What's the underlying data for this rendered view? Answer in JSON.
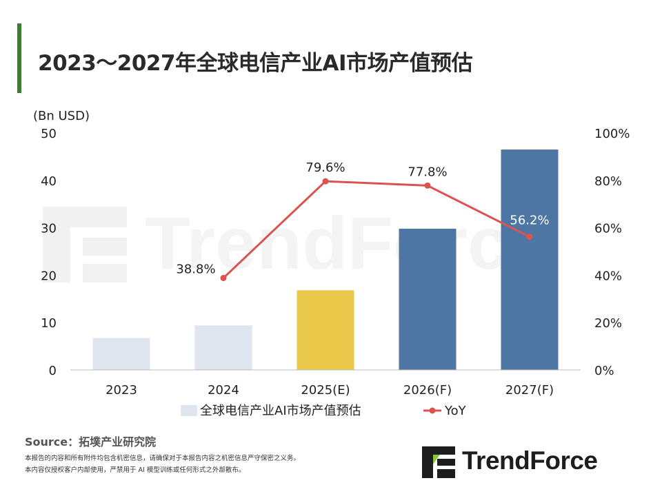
{
  "title": "2023～2027年全球电信产业AI市场产值预估",
  "source": "Source：拓墣产业研究院",
  "disclaimer": [
    "本报告的内容和所有附件均包含机密信息，请确保对于本报告内容之机密信息严守保密之义务。",
    "本内容仅授权客户内部使用，严禁用于 AI 模型训练或任何形式之外部散布。"
  ],
  "logo": {
    "text": "TrendForce",
    "icon": "trendforce-logo-icon"
  },
  "watermark": "TrendForce",
  "colors": {
    "bar_actual": "#dfe6f0",
    "bar_estimate": "#eac84a",
    "bar_forecast": "#4e76a4",
    "line": "#d9534f",
    "title_accent": "#3a7d2c"
  },
  "chart_data": {
    "type": "bar",
    "ylabel": "(Bn USD)",
    "categories": [
      "2023",
      "2024",
      "2025(E)",
      "2026(F)",
      "2027(F)"
    ],
    "ylim": [
      0,
      50
    ],
    "yticks": [
      "0",
      "10",
      "20",
      "30",
      "40",
      "50"
    ],
    "y2lim": [
      0,
      100
    ],
    "y2ticks": [
      "0%",
      "20%",
      "40%",
      "60%",
      "80%",
      "100%"
    ],
    "series": [
      {
        "name": "全球电信产业AI市场产值预估",
        "type": "bar",
        "axis": "left",
        "values": [
          6.7,
          9.4,
          16.8,
          29.8,
          46.5
        ],
        "bar_colors": [
          "#dfe6f0",
          "#dfe6f0",
          "#eac84a",
          "#4e76a4",
          "#4e76a4"
        ]
      },
      {
        "name": "YoY",
        "type": "line",
        "axis": "right",
        "values": [
          null,
          38.8,
          79.6,
          77.8,
          56.2
        ],
        "labels": [
          "",
          "38.8%",
          "79.6%",
          "77.8%",
          "56.2%"
        ],
        "color": "#d9534f"
      }
    ],
    "grid": false,
    "legend_position": "bottom"
  }
}
